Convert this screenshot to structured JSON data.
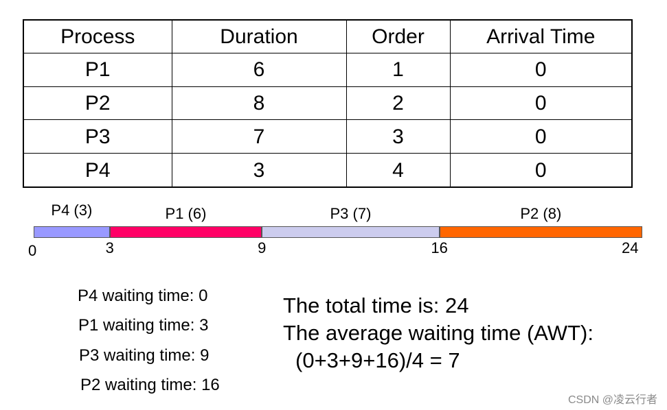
{
  "table": {
    "headers": [
      "Process",
      "Duration",
      "Order",
      "Arrival Time"
    ],
    "rows": [
      [
        "P1",
        "6",
        "1",
        "0"
      ],
      [
        "P2",
        "8",
        "2",
        "0"
      ],
      [
        "P3",
        "7",
        "3",
        "0"
      ],
      [
        "P4",
        "3",
        "4",
        "0"
      ]
    ]
  },
  "gantt": {
    "total": 24,
    "segments": [
      {
        "label": "P4 (3)",
        "start": 0,
        "end": 3,
        "color": "#9999ff"
      },
      {
        "label": "P1 (6)",
        "start": 3,
        "end": 9,
        "color": "#ff0066"
      },
      {
        "label": "P3 (7)",
        "start": 9,
        "end": 16,
        "color": "#ccccee"
      },
      {
        "label": "P2 (8)",
        "start": 16,
        "end": 24,
        "color": "#ff6600"
      }
    ],
    "ticks": [
      "0",
      "3",
      "9",
      "16",
      "24"
    ]
  },
  "waiting_times": [
    "P4 waiting time: 0",
    "P1 waiting time: 3",
    "P3 waiting time: 9",
    "P2 waiting time: 16"
  ],
  "summary": {
    "total_line": "The total time is: 24",
    "avg_line": "The average waiting time (AWT):",
    "formula_line": "(0+3+9+16)/4 = 7"
  },
  "watermark": "CSDN @凌云行者"
}
